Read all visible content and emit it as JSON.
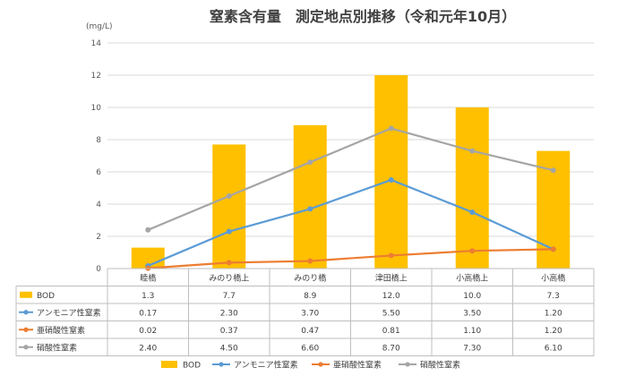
{
  "chart_data": {
    "type": "bar",
    "title": "窒素含有量　測定地点別推移（令和元年10月）",
    "ylabel": "(mg/L)",
    "ylim": [
      0,
      14
    ],
    "yticks": [
      "0",
      "2",
      "4",
      "6",
      "8",
      "10",
      "12",
      "14"
    ],
    "grid": true,
    "legend_position": "bottom",
    "categories": [
      "睦橋",
      "みのり橋上",
      "みのり橋",
      "津田橋上",
      "小高橋上",
      "小高橋"
    ],
    "series": [
      {
        "name": "BOD",
        "kind": "bar",
        "color": "#FFC000",
        "values": [
          1.3,
          7.7,
          8.9,
          12.0,
          10.0,
          7.3
        ],
        "labels": [
          "1.3",
          "7.7",
          "8.9",
          "12.0",
          "10.0",
          "7.3"
        ]
      },
      {
        "name": "アンモニア性窒素",
        "kind": "line",
        "color": "#5B9BD5",
        "values": [
          0.17,
          2.3,
          3.7,
          5.5,
          3.5,
          1.2
        ],
        "labels": [
          "0.17",
          "2.30",
          "3.70",
          "5.50",
          "3.50",
          "1.20"
        ]
      },
      {
        "name": "亜硝酸性窒素",
        "kind": "line",
        "color": "#ED7D31",
        "values": [
          0.02,
          0.37,
          0.47,
          0.81,
          1.1,
          1.2
        ],
        "labels": [
          "0.02",
          "0.37",
          "0.47",
          "0.81",
          "1.10",
          "1.20"
        ]
      },
      {
        "name": "硝酸性窒素",
        "kind": "line",
        "color": "#A5A5A5",
        "values": [
          2.4,
          4.5,
          6.6,
          8.7,
          7.3,
          6.1
        ],
        "labels": [
          "2.40",
          "4.50",
          "6.60",
          "8.70",
          "7.30",
          "6.10"
        ]
      }
    ]
  }
}
